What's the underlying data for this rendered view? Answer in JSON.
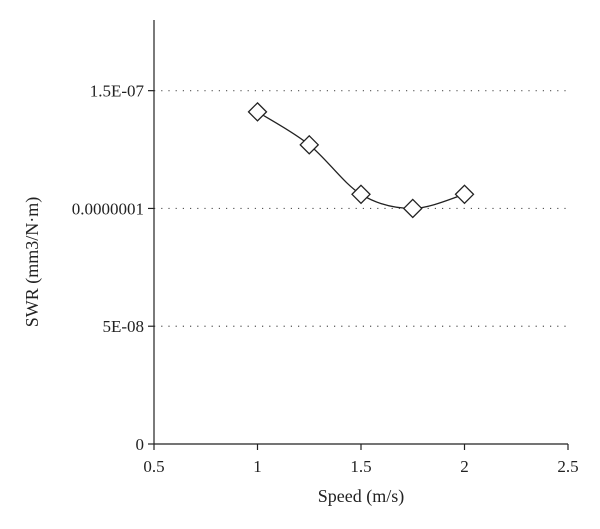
{
  "chart_data": {
    "type": "line",
    "title": "",
    "xlabel": "Speed (m/s)",
    "ylabel": "SWR (mm3/N·m)",
    "xlim": [
      0.5,
      2.5
    ],
    "ylim": [
      0,
      1.8e-07
    ],
    "x_ticks": [
      {
        "value": 0.5,
        "label": "0.5"
      },
      {
        "value": 1,
        "label": "1"
      },
      {
        "value": 1.5,
        "label": "1.5"
      },
      {
        "value": 2,
        "label": "2"
      },
      {
        "value": 2.5,
        "label": "2.5"
      }
    ],
    "y_ticks": [
      {
        "value": 0,
        "label": "0"
      },
      {
        "value": 5e-08,
        "label": "5E-08"
      },
      {
        "value": 1e-07,
        "label": "0.0000001"
      },
      {
        "value": 1.5e-07,
        "label": "1.5E-07"
      }
    ],
    "grid": "horizontal dotted",
    "marker": "diamond",
    "line": "smoothed",
    "series": [
      {
        "x": [
          1,
          1.25,
          1.5,
          1.75,
          2
        ],
        "y": [
          1.41e-07,
          1.27e-07,
          1.06e-07,
          1e-07,
          1.06e-07
        ]
      }
    ],
    "colors": {
      "line": "#222222",
      "grid": "#555555",
      "axis": "#222222"
    }
  }
}
